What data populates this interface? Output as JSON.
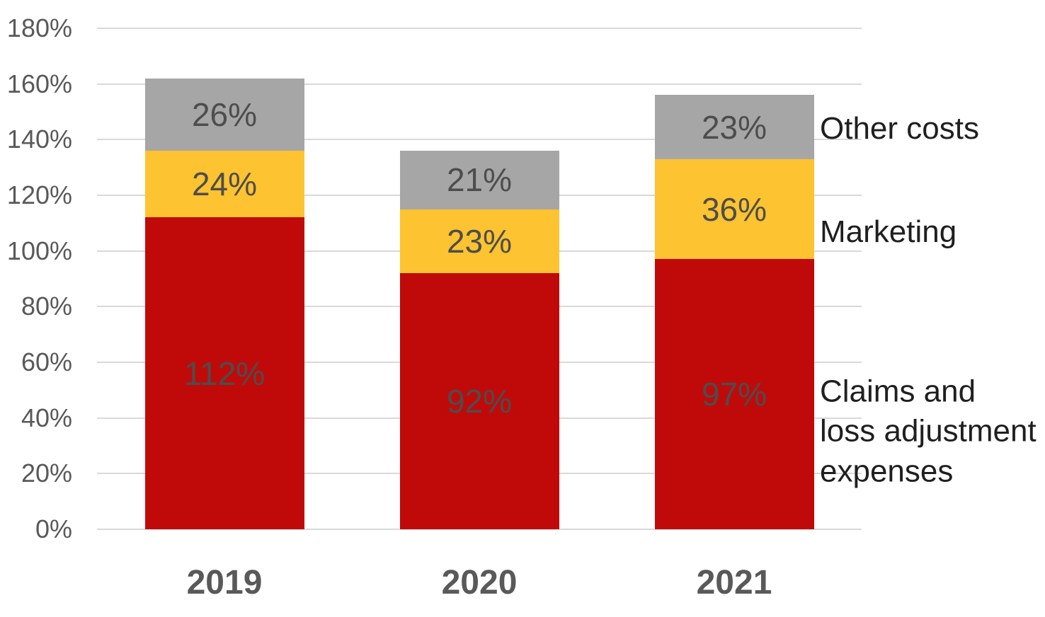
{
  "chart_data": {
    "type": "bar",
    "stacked": true,
    "categories": [
      "2019",
      "2020",
      "2021"
    ],
    "series": [
      {
        "name": "Claims and loss adjustment expenses",
        "color": "#c00a0a",
        "values": [
          112,
          92,
          97
        ]
      },
      {
        "name": "Marketing",
        "color": "#fdc330",
        "values": [
          24,
          23,
          36
        ]
      },
      {
        "name": "Other costs",
        "color": "#a6a6a6",
        "values": [
          26,
          21,
          23
        ]
      }
    ],
    "value_suffix": "%",
    "ylim": [
      0,
      180
    ],
    "ytick_step": 20,
    "ytick_labels": [
      "0%",
      "20%",
      "40%",
      "60%",
      "80%",
      "100%",
      "120%",
      "140%",
      "160%",
      "180%"
    ],
    "grid": true,
    "legend_position": "right",
    "right_labels": [
      {
        "text": "Other costs"
      },
      {
        "text": "Marketing"
      },
      {
        "text": "Claims and\nloss adjustment\nexpenses"
      }
    ]
  },
  "styles": {
    "background": "#ffffff",
    "grid_color": "#d9d9d9",
    "tick_text_color": "#595959",
    "category_text_color": "#595959",
    "data_label_color": "#4d4d4d",
    "right_label_color": "#1f1f1f"
  }
}
